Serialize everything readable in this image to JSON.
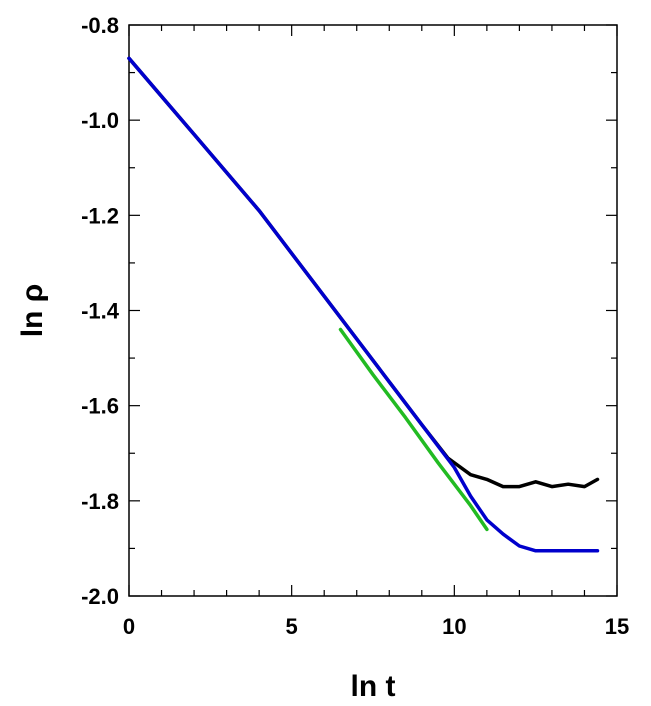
{
  "chart_data": {
    "type": "line",
    "title": "",
    "xlabel": "ln t",
    "ylabel": "ln ρ",
    "xlim": [
      0,
      15
    ],
    "ylim": [
      -2.0,
      -0.8
    ],
    "x_ticks": [
      0,
      5,
      10,
      15
    ],
    "x_tick_labels": [
      "0",
      "5",
      "10",
      "15"
    ],
    "y_ticks": [
      -2.0,
      -1.8,
      -1.6,
      -1.4,
      -1.2,
      -1.0,
      -0.8
    ],
    "y_tick_labels": [
      "-2.0",
      "-1.8",
      "-1.6",
      "-1.4",
      "-1.2",
      "-1.0",
      "-0.8"
    ],
    "x_minor_step": 1,
    "y_minor_step": 0.1,
    "grid": false,
    "legend": "none",
    "series": [
      {
        "color": "#000000",
        "points": [
          [
            0,
            -0.87
          ],
          [
            2,
            -1.03
          ],
          [
            4,
            -1.19
          ],
          [
            6,
            -1.37
          ],
          [
            8,
            -1.55
          ],
          [
            9,
            -1.64
          ],
          [
            9.8,
            -1.71
          ],
          [
            10.5,
            -1.745
          ],
          [
            11,
            -1.755
          ],
          [
            11.5,
            -1.77
          ],
          [
            12,
            -1.77
          ],
          [
            12.5,
            -1.76
          ],
          [
            13,
            -1.77
          ],
          [
            13.5,
            -1.765
          ],
          [
            14,
            -1.77
          ],
          [
            14.4,
            -1.755
          ]
        ]
      },
      {
        "color": "#0000cc",
        "points": [
          [
            0,
            -0.87
          ],
          [
            2,
            -1.03
          ],
          [
            4,
            -1.19
          ],
          [
            6,
            -1.37
          ],
          [
            8,
            -1.55
          ],
          [
            9,
            -1.64
          ],
          [
            10,
            -1.73
          ],
          [
            10.5,
            -1.79
          ],
          [
            11,
            -1.84
          ],
          [
            11.5,
            -1.87
          ],
          [
            12,
            -1.895
          ],
          [
            12.5,
            -1.905
          ],
          [
            13,
            -1.905
          ],
          [
            13.5,
            -1.905
          ],
          [
            14,
            -1.905
          ],
          [
            14.4,
            -1.905
          ]
        ]
      },
      {
        "color": "#22bb22",
        "points": [
          [
            6.5,
            -1.44
          ],
          [
            7.5,
            -1.535
          ],
          [
            8.5,
            -1.625
          ],
          [
            9.5,
            -1.72
          ],
          [
            10.5,
            -1.81
          ],
          [
            11,
            -1.86
          ]
        ]
      }
    ]
  }
}
